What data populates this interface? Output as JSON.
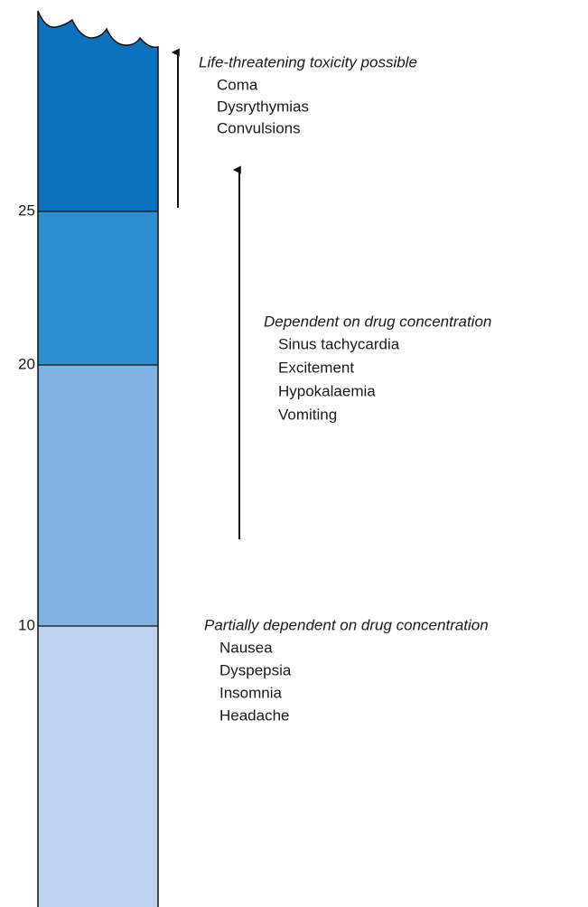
{
  "scale": {
    "ticks": [
      "25",
      "20",
      "10"
    ]
  },
  "groups": [
    {
      "heading": "Life-threatening toxicity possible",
      "items": [
        "Coma",
        "Dysrythymias",
        "Convulsions"
      ]
    },
    {
      "heading": "Dependent on drug concentration",
      "items": [
        "Sinus tachycardia",
        "Excitement",
        "Hypokalaemia",
        "Vomiting"
      ]
    },
    {
      "heading": "Partially dependent on drug concentration",
      "items": [
        "Nausea",
        "Dyspepsia",
        "Insomnia",
        "Headache"
      ]
    }
  ]
}
